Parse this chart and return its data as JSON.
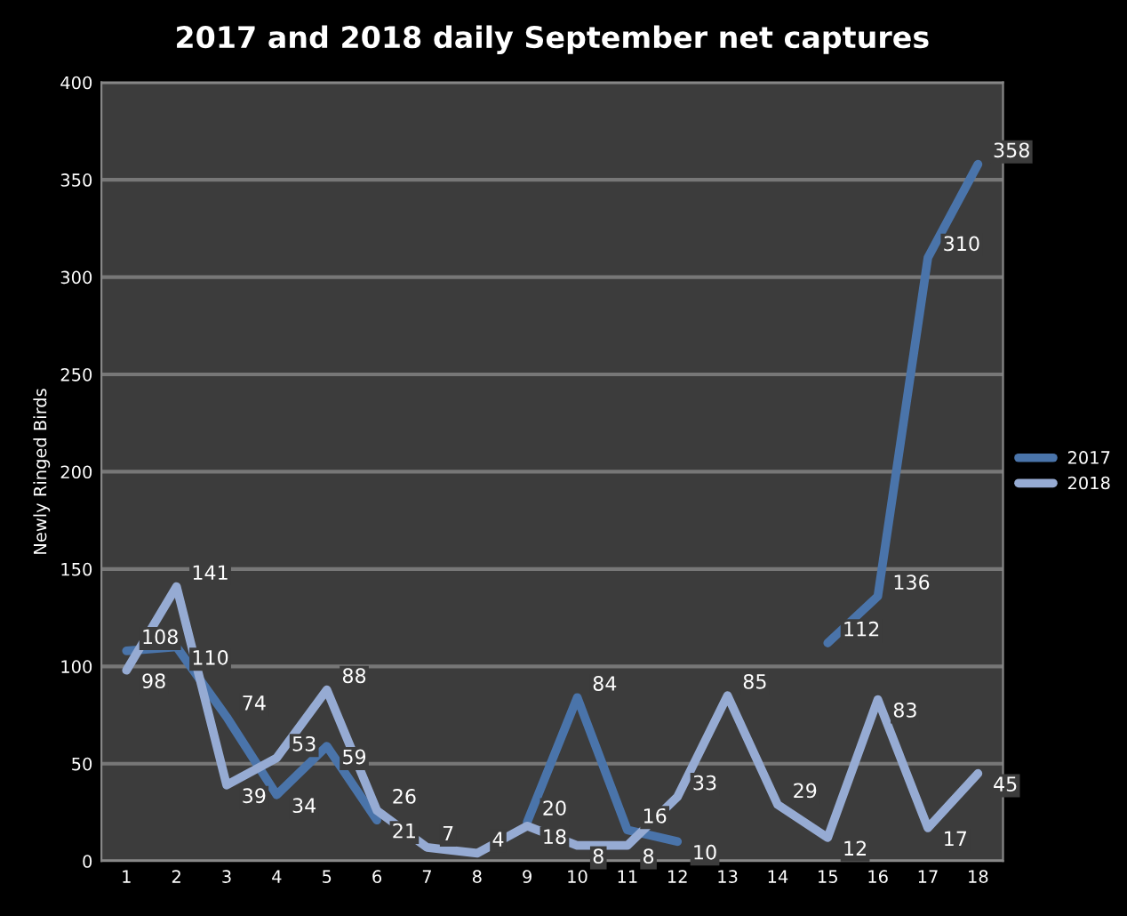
{
  "chart_data": {
    "type": "line",
    "title": "2017 and 2018 daily September net captures",
    "ylabel": "Newly Ringed Birds",
    "categories": [
      "1",
      "2",
      "3",
      "4",
      "5",
      "6",
      "7",
      "8",
      "9",
      "10",
      "11",
      "12",
      "13",
      "14",
      "15",
      "16",
      "17",
      "18"
    ],
    "series": [
      {
        "name": "2017",
        "color": "#4a74aa",
        "values": [
          108,
          110,
          74,
          34,
          59,
          21,
          null,
          null,
          20,
          84,
          16,
          10,
          null,
          null,
          112,
          136,
          310,
          358
        ]
      },
      {
        "name": "2018",
        "color": "#96abd3",
        "values": [
          98,
          141,
          39,
          53,
          88,
          26,
          7,
          4,
          18,
          8,
          8,
          33,
          85,
          29,
          12,
          83,
          17,
          45
        ]
      }
    ],
    "ylim": [
      0,
      400
    ],
    "yticks": [
      0,
      50,
      100,
      150,
      200,
      250,
      300,
      350,
      400
    ],
    "grid": "y",
    "legend": "right",
    "data_labels": true,
    "marker": "none",
    "line_style": "solid"
  }
}
